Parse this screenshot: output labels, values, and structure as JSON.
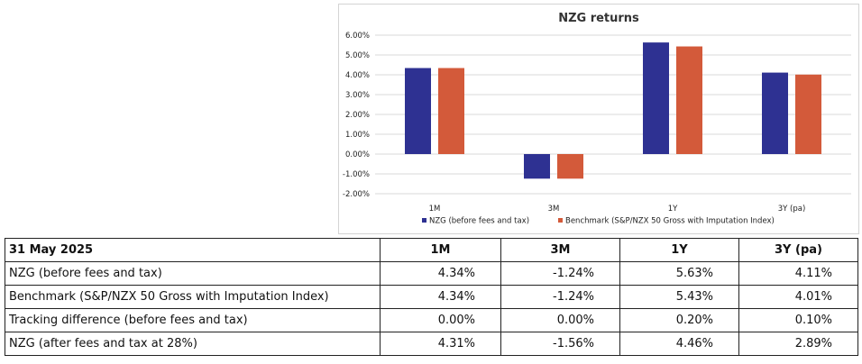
{
  "chart_data": {
    "type": "bar",
    "title": "NZG returns",
    "categories": [
      "1M",
      "3M",
      "1Y",
      "3Y (pa)"
    ],
    "series": [
      {
        "name": "NZG (before fees and tax)",
        "color": "#2E3192",
        "values": [
          4.34,
          -1.24,
          5.63,
          4.11
        ]
      },
      {
        "name": "Benchmark (S&P/NZX 50 Gross with Imputation Index)",
        "color": "#D35A3A",
        "values": [
          4.34,
          -1.24,
          5.43,
          4.01
        ]
      }
    ],
    "ylim": [
      -2,
      6
    ],
    "yticks": [
      "6.00%",
      "5.00%",
      "4.00%",
      "3.00%",
      "2.00%",
      "1.00%",
      "0.00%",
      "-1.00%",
      "-2.00%"
    ],
    "grid": true,
    "legend": "bottom"
  },
  "table": {
    "headers": [
      "31 May 2025",
      "1M",
      "3M",
      "1Y",
      "3Y (pa)"
    ],
    "rows": [
      {
        "label": "NZG (before fees and tax)",
        "values": [
          "4.34%",
          "-1.24%",
          "5.63%",
          "4.11%"
        ]
      },
      {
        "label": "Benchmark (S&P/NZX 50 Gross with Imputation Index)",
        "values": [
          "4.34%",
          "-1.24%",
          "5.43%",
          "4.01%"
        ]
      },
      {
        "label": "Tracking difference (before fees and tax)",
        "values": [
          "0.00%",
          "0.00%",
          "0.20%",
          "0.10%"
        ]
      },
      {
        "label": "NZG (after fees and tax at 28%)",
        "values": [
          "4.31%",
          "-1.56%",
          "4.46%",
          "2.89%"
        ]
      }
    ]
  }
}
